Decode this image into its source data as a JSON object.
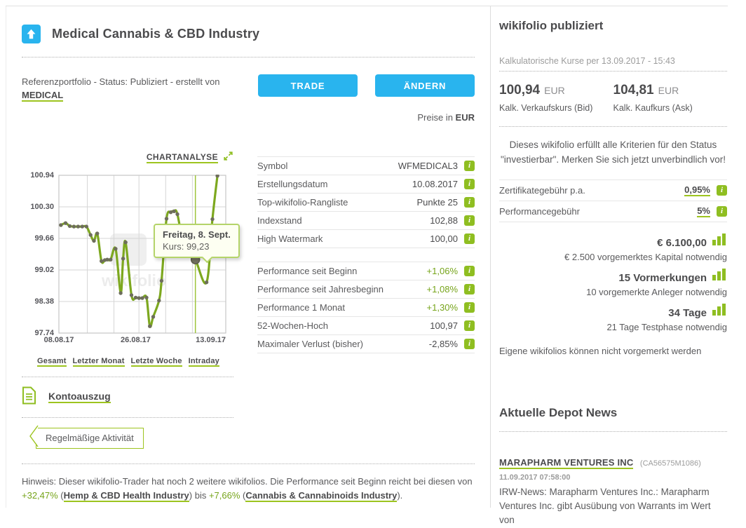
{
  "header": {
    "title": "Medical Cannabis & CBD Industry"
  },
  "status": {
    "line": "Referenzportfolio - Status: Publiziert - erstellt von",
    "trader": "MEDICAL"
  },
  "buttons": {
    "trade": "TRADE",
    "aendern": "ÄNDERN"
  },
  "price_note": {
    "prefix": "Preise in",
    "currency": "EUR"
  },
  "chart": {
    "analysis_label": "CHARTANALYSE",
    "tooltip": {
      "title": "Freitag, 8. Sept.",
      "value_label": "Kurs: 99,23"
    },
    "tabs": [
      {
        "label": "Gesamt"
      },
      {
        "label": "Letzter Monat"
      },
      {
        "label": "Letzte Woche"
      },
      {
        "label": "Intraday"
      }
    ]
  },
  "chart_data": {
    "type": "line",
    "title": "wikifolio index chart",
    "ylim": [
      97.74,
      100.94
    ],
    "y_ticks": [
      "100.94",
      "100.30",
      "99.66",
      "99.02",
      "98.38",
      "97.74"
    ],
    "x_ticks": [
      {
        "label": "08.08.17",
        "pos": 0.0
      },
      {
        "label": "26.08.17",
        "pos": 0.46
      },
      {
        "label": "13.09.17",
        "pos": 0.91
      }
    ],
    "x_gridlines": [
      0.17,
      0.33,
      0.48,
      0.64,
      0.8
    ],
    "grid": true,
    "line_color": "#7da81f",
    "dot_color": "#6e6e5c",
    "cursor_color": "#9ec53d",
    "points": [
      {
        "x": 0.012,
        "v": 99.93
      },
      {
        "x": 0.04,
        "v": 99.97
      },
      {
        "x": 0.065,
        "v": 99.91
      },
      {
        "x": 0.09,
        "v": 99.9
      },
      {
        "x": 0.115,
        "v": 99.9
      },
      {
        "x": 0.14,
        "v": 99.9
      },
      {
        "x": 0.165,
        "v": 99.9
      },
      {
        "x": 0.19,
        "v": 99.73
      },
      {
        "x": 0.21,
        "v": 99.61
      },
      {
        "x": 0.23,
        "v": 99.76
      },
      {
        "x": 0.255,
        "v": 99.2
      },
      {
        "x": 0.275,
        "v": 99.22
      },
      {
        "x": 0.29,
        "v": 99.23
      },
      {
        "x": 0.31,
        "v": 99.23
      },
      {
        "x": 0.34,
        "v": 99.45
      },
      {
        "x": 0.37,
        "v": 98.55
      },
      {
        "x": 0.385,
        "v": 99.25
      },
      {
        "x": 0.4,
        "v": 99.58
      },
      {
        "x": 0.435,
        "v": 98.51
      },
      {
        "x": 0.46,
        "v": 98.46
      },
      {
        "x": 0.48,
        "v": 98.45
      },
      {
        "x": 0.5,
        "v": 98.45
      },
      {
        "x": 0.525,
        "v": 98.46
      },
      {
        "x": 0.545,
        "v": 97.88
      },
      {
        "x": 0.565,
        "v": 98.07
      },
      {
        "x": 0.6,
        "v": 98.4
      },
      {
        "x": 0.615,
        "v": 98.8
      },
      {
        "x": 0.645,
        "v": 100.06
      },
      {
        "x": 0.67,
        "v": 100.19
      },
      {
        "x": 0.69,
        "v": 100.21
      },
      {
        "x": 0.71,
        "v": 100.15
      },
      {
        "x": 0.755,
        "v": 99.37
      },
      {
        "x": 0.775,
        "v": 99.42
      },
      {
        "x": 0.818,
        "v": 99.23
      },
      {
        "x": 0.885,
        "v": 98.77
      },
      {
        "x": 0.92,
        "v": 100.05
      },
      {
        "x": 0.95,
        "v": 100.93
      }
    ],
    "highlight": {
      "x": 0.818,
      "v": 99.23,
      "date": "Freitag, 8. Sept.",
      "value_text": "Kurs: 99,23"
    },
    "watermark": "wikifolio"
  },
  "key_figures": {
    "rows": [
      {
        "label": "Symbol",
        "value": "WFMEDICAL3"
      },
      {
        "label": "Erstellungsdatum",
        "value": "10.08.2017"
      },
      {
        "label": "Top-wikifolio-Rangliste",
        "value": "Punkte 25"
      },
      {
        "label": "Indexstand",
        "value": "102,88"
      },
      {
        "label": "High Watermark",
        "value": "100,00"
      }
    ]
  },
  "performance_figures": {
    "rows": [
      {
        "label": "Performance seit Beginn",
        "value": "+1,06%",
        "positive": true
      },
      {
        "label": "Performance seit Jahresbeginn",
        "value": "+1,08%",
        "positive": true
      },
      {
        "label": "Performance 1 Monat",
        "value": "+1,30%",
        "positive": true
      },
      {
        "label": "52-Wochen-Hoch",
        "value": "100,97",
        "positive": false
      },
      {
        "label": "Maximaler Verlust (bisher)",
        "value": "-2,85%",
        "positive": false
      }
    ]
  },
  "kontoauszug_label": "Kontoauszug",
  "activity_badge": "Regelmäßige Aktivität",
  "hinweis": {
    "text_1": "Hinweis: Dieser wikifolio-Trader hat noch 2 weitere wikifolios. Die Performance seit Beginn reicht bei diesen von ",
    "pct_1": "+32,47%",
    "sep_1": " (",
    "link_1": "Hemp & CBD Health Industry",
    "mid": ") bis ",
    "pct_2": "+7,66%",
    "sep_2": " (",
    "link_2": "Cannabis & Cannabinoids Industry",
    "end": ")."
  },
  "sidebar": {
    "heading": "wikifolio publiziert",
    "kurse_caption": "Kalkulatorische Kurse per 13.09.2017 - 15:43",
    "bid": {
      "value": "100,94",
      "currency": "EUR",
      "label": "Kalk. Verkaufskurs (Bid)"
    },
    "ask": {
      "value": "104,81",
      "currency": "EUR",
      "label": "Kalk. Kaufkurs (Ask)"
    },
    "invest_note": "Dieses wikifolio erfüllt alle Kriterien für den Status \"investierbar\". Merken Sie sich jetzt unverbindlich vor!",
    "fees": [
      {
        "label": "Zertifikategebühr p.a.",
        "value": "0,95%"
      },
      {
        "label": "Performancegebühr",
        "value": "5%"
      }
    ],
    "requirements": [
      {
        "value": "€ 6.100,00",
        "note": "€ 2.500 vorgemerktes Kapital notwendig"
      },
      {
        "value": "15 Vormerkungen",
        "note": "10 vorgemerkte Anleger notwendig"
      },
      {
        "value": "34 Tage",
        "note": "21 Tage Testphase notwendig"
      }
    ],
    "own_note": "Eigene wikifolios können nicht vorgemerkt werden",
    "news": {
      "heading": "Aktuelle Depot News",
      "item": {
        "title": "MARAPHARM VENTURES INC",
        "isin": "(CA56575M1086)",
        "datetime": "11.09.2017 07:58:00",
        "body": "IRW-News: Marapharm Ventures Inc.: Marapharm Ventures Inc. gibt Ausübung von Warrants im Wert von"
      }
    }
  },
  "colors": {
    "accent_blue": "#29b4ee",
    "accent_green": "#8fbe21",
    "chart_line": "#7da81f",
    "positive_text": "#76a41a"
  }
}
